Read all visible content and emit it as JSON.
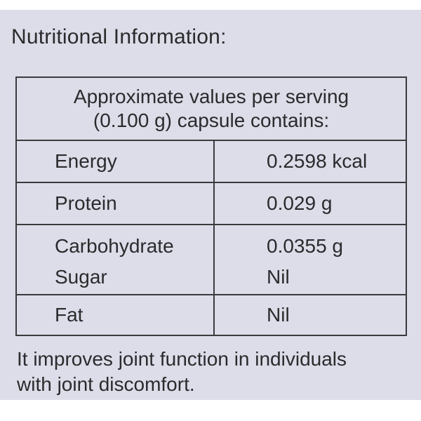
{
  "title": "Nutritional Information:",
  "table": {
    "header_line1": "Approximate values per serving",
    "header_line2": "(0.100 g) capsule contains:",
    "rows": [
      {
        "name": "Energy",
        "value": "0.2598 kcal"
      },
      {
        "name": "Protein",
        "value": "0.029 g"
      },
      {
        "name": "Carbohydrate",
        "value": "0.0355 g",
        "sub_name": "Sugar",
        "sub_value": "Nil"
      },
      {
        "name": "Fat",
        "value": "Nil"
      }
    ]
  },
  "footer": {
    "line1": "It improves joint function in individuals",
    "line2": "with joint discomfort."
  }
}
